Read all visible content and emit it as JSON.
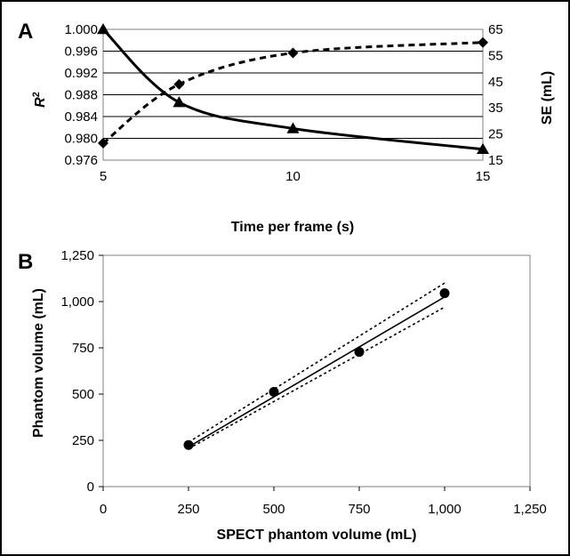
{
  "chart_data": [
    {
      "panel": "A",
      "type": "line",
      "xlabel": "Time per frame (s)",
      "ylabel_left": "R",
      "ylabel_left_superscript": "2",
      "ylabel_right": "SE (mL)",
      "xlim": [
        5,
        15
      ],
      "ylim_left": [
        0.976,
        1.0
      ],
      "ylim_right": [
        15,
        65
      ],
      "xticks": [
        "5",
        "10",
        "15"
      ],
      "xtick_values": [
        5,
        10,
        15
      ],
      "yticks_left": [
        "1.000",
        "0.996",
        "0.992",
        "0.988",
        "0.984",
        "0.980",
        "0.976"
      ],
      "ytick_values_left": [
        1.0,
        0.996,
        0.992,
        0.988,
        0.984,
        0.98,
        0.976
      ],
      "yticks_right": [
        "65",
        "55",
        "45",
        "35",
        "25",
        "15"
      ],
      "ytick_values_right": [
        65,
        55,
        45,
        35,
        25,
        15
      ],
      "grid": "horizontal",
      "series": [
        {
          "axis": "left",
          "marker": "triangle",
          "line": "solid",
          "x": [
            5,
            7,
            10,
            15
          ],
          "values": [
            1.0,
            0.9866,
            0.9818,
            0.978
          ]
        },
        {
          "axis": "right",
          "marker": "diamond",
          "line": "dashed",
          "x": [
            5,
            7,
            10,
            15
          ],
          "values": [
            21.5,
            44,
            56,
            60
          ]
        }
      ]
    },
    {
      "panel": "B",
      "type": "scatter",
      "xlabel": "SPECT phantom volume (mL)",
      "ylabel": "Phantom volume (mL)",
      "xlim": [
        0,
        1250
      ],
      "ylim": [
        0,
        1250
      ],
      "xticks": [
        "0",
        "250",
        "500",
        "750",
        "1,000",
        "1,250"
      ],
      "xtick_values": [
        0,
        250,
        500,
        750,
        1000,
        1250
      ],
      "yticks": [
        "0",
        "250",
        "500",
        "750",
        "1,000",
        "1,250"
      ],
      "ytick_values": [
        0,
        250,
        500,
        750,
        1000,
        1250
      ],
      "grid": "none",
      "points": {
        "marker": "circle",
        "x": [
          250,
          500,
          750,
          1000
        ],
        "y": [
          225,
          512,
          728,
          1045
        ]
      },
      "fit_line": {
        "style": "solid",
        "x": [
          250,
          1000
        ],
        "y": [
          215,
          1025
        ]
      },
      "confidence_bands": [
        {
          "style": "dotted",
          "x": [
            250,
            1000
          ],
          "y": [
            240,
            1100
          ]
        },
        {
          "style": "dotted",
          "x": [
            250,
            1000
          ],
          "y": [
            205,
            970
          ]
        }
      ]
    }
  ]
}
